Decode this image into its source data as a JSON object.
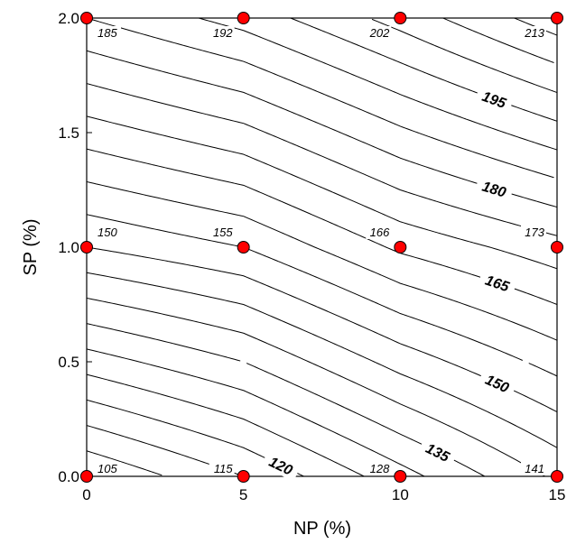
{
  "chart_data": {
    "type": "contour",
    "title": "",
    "xlabel": "NP (%)",
    "ylabel": "SP (%)",
    "xlim": [
      0,
      15
    ],
    "ylim": [
      0,
      2
    ],
    "x_ticks": [
      "0",
      "5",
      "10",
      "15"
    ],
    "y_ticks": [
      "0.0",
      "0.5",
      "1.0",
      "1.5",
      "2.0"
    ],
    "grid": false,
    "points": [
      {
        "x": 0,
        "y": 0,
        "value": 105
      },
      {
        "x": 5,
        "y": 0,
        "value": 115
      },
      {
        "x": 10,
        "y": 0,
        "value": 128
      },
      {
        "x": 15,
        "y": 0,
        "value": 141
      },
      {
        "x": 0,
        "y": 1,
        "value": 150
      },
      {
        "x": 5,
        "y": 1,
        "value": 155
      },
      {
        "x": 10,
        "y": 1,
        "value": 166
      },
      {
        "x": 15,
        "y": 1,
        "value": 173
      },
      {
        "x": 0,
        "y": 2,
        "value": 185
      },
      {
        "x": 5,
        "y": 2,
        "value": 192
      },
      {
        "x": 10,
        "y": 2,
        "value": 202
      },
      {
        "x": 15,
        "y": 2,
        "value": 213
      }
    ],
    "contour_levels": {
      "start": 105,
      "end": 210,
      "step": 5
    },
    "contour_labels": [
      {
        "level": 120,
        "text": "120"
      },
      {
        "level": 135,
        "text": "135"
      },
      {
        "level": 150,
        "text": "150"
      },
      {
        "level": 165,
        "text": "165"
      },
      {
        "level": 180,
        "text": "180"
      },
      {
        "level": 195,
        "text": "195"
      }
    ],
    "colors": {
      "marker_fill": "#ff0000",
      "marker_stroke": "#000000",
      "line": "#000000"
    }
  }
}
